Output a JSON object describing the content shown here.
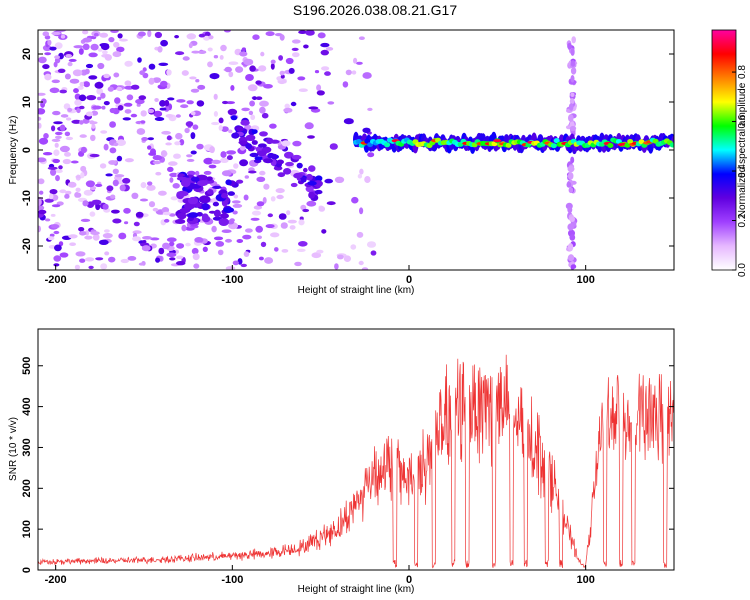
{
  "title": "S196.2026.038.08.21.G17",
  "chart_data": [
    {
      "type": "heatmap",
      "xlabel": "Height of straight line (km)",
      "ylabel": "Frequency (Hz)",
      "xlim": [
        -210,
        150
      ],
      "ylim": [
        -25,
        25
      ],
      "xticks": [
        -200,
        -100,
        0,
        100
      ],
      "xtick_labels": [
        "-200",
        "-100",
        "0",
        "100"
      ],
      "yticks": [
        -20,
        -10,
        0,
        10,
        20
      ],
      "ytick_labels": [
        "-20",
        "-10",
        "0",
        "10",
        "20"
      ],
      "colorbar": {
        "label": "Normalized spectral amplitude",
        "range": [
          0,
          0.97
        ],
        "ticks": [
          0.0,
          0.2,
          0.4,
          0.6,
          0.8
        ],
        "tick_labels": [
          "0.0",
          "0.2",
          "0.4",
          "0.6",
          "0.8"
        ],
        "colors": [
          "#ffffff",
          "#e6b8ff",
          "#a040ff",
          "#6000e0",
          "#0000ff",
          "#00ffff",
          "#00ff00",
          "#ffff00",
          "#ff8000",
          "#ff0000",
          "#ff00a0"
        ]
      },
      "features": {
        "noise_region_km": [
          -210,
          -30
        ],
        "signal_track_start_km": -30,
        "signal_track_freq_hz": 1.5,
        "dense_cluster": {
          "x_km": [
            -130,
            -100
          ],
          "y_hz": [
            -15,
            -5
          ]
        },
        "descending_track": {
          "x_km": [
            -100,
            -50
          ],
          "y_hz_start": 5,
          "y_hz_end": -8
        },
        "vertical_noise_column_km": 92
      }
    },
    {
      "type": "line",
      "xlabel": "Height of straight line (km)",
      "ylabel": "SNR (10 * v/v)",
      "xlim": [
        -210,
        150
      ],
      "ylim": [
        0,
        590
      ],
      "xticks": [
        -200,
        -100,
        0,
        100
      ],
      "xtick_labels": [
        "-200",
        "-100",
        "0",
        "100"
      ],
      "yticks": [
        0,
        100,
        200,
        300,
        400,
        500
      ],
      "ytick_labels": [
        "0",
        "100",
        "200",
        "300",
        "400",
        "500"
      ],
      "series": [
        {
          "name": "SNR",
          "color": "#ee3333",
          "envelope_x": [
            -210,
            -150,
            -110,
            -80,
            -60,
            -40,
            -30,
            -20,
            -10,
            0,
            10,
            20,
            30,
            40,
            50,
            60,
            70,
            80,
            90,
            97,
            100,
            110,
            120,
            130,
            140,
            150
          ],
          "envelope_y": [
            25,
            30,
            40,
            50,
            70,
            130,
            200,
            300,
            320,
            280,
            330,
            450,
            500,
            520,
            500,
            460,
            400,
            300,
            120,
            20,
            10,
            480,
            470,
            470,
            450,
            450
          ],
          "dropouts_km": [
            -8,
            4,
            14,
            25,
            33,
            48,
            58,
            66,
            78,
            86,
            111,
            120,
            127,
            145
          ]
        }
      ]
    }
  ]
}
